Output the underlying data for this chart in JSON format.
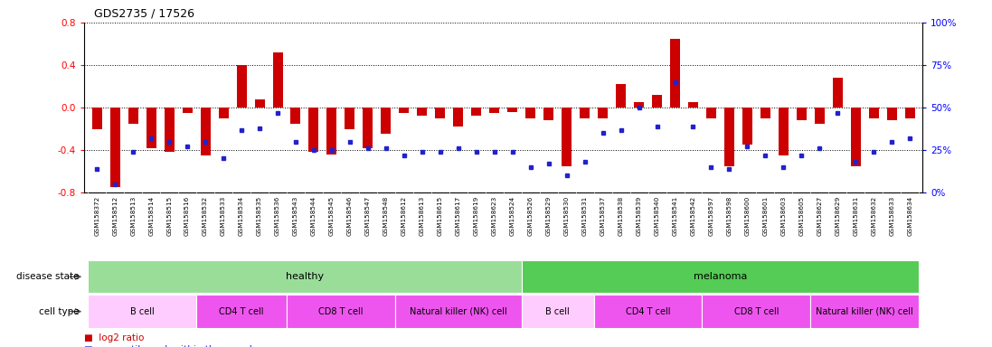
{
  "title": "GDS2735 / 17526",
  "samples": [
    "GSM158372",
    "GSM158512",
    "GSM158513",
    "GSM158514",
    "GSM158515",
    "GSM158516",
    "GSM158532",
    "GSM158533",
    "GSM158534",
    "GSM158535",
    "GSM158536",
    "GSM158543",
    "GSM158544",
    "GSM158545",
    "GSM158546",
    "GSM158547",
    "GSM158548",
    "GSM158612",
    "GSM158613",
    "GSM158615",
    "GSM158617",
    "GSM158619",
    "GSM158623",
    "GSM158524",
    "GSM158526",
    "GSM158529",
    "GSM158530",
    "GSM158531",
    "GSM158537",
    "GSM158538",
    "GSM158539",
    "GSM158540",
    "GSM158541",
    "GSM158542",
    "GSM158597",
    "GSM158598",
    "GSM158600",
    "GSM158601",
    "GSM158603",
    "GSM158605",
    "GSM158627",
    "GSM158629",
    "GSM158631",
    "GSM158632",
    "GSM158633",
    "GSM158634"
  ],
  "log2_ratio": [
    -0.2,
    -0.75,
    -0.15,
    -0.38,
    -0.42,
    -0.05,
    -0.45,
    -0.1,
    0.4,
    0.08,
    0.52,
    -0.15,
    -0.42,
    -0.44,
    -0.2,
    -0.38,
    -0.25,
    -0.05,
    -0.08,
    -0.1,
    -0.18,
    -0.08,
    -0.05,
    -0.04,
    -0.1,
    -0.12,
    -0.55,
    -0.1,
    -0.1,
    0.22,
    0.05,
    0.12,
    0.65,
    0.05,
    -0.1,
    -0.55,
    -0.35,
    -0.1,
    -0.45,
    -0.12,
    -0.15,
    0.28,
    -0.55,
    -0.1,
    -0.12,
    -0.1
  ],
  "percentile": [
    14,
    5,
    24,
    32,
    30,
    27,
    30,
    20,
    37,
    38,
    47,
    30,
    25,
    25,
    30,
    26,
    26,
    22,
    24,
    24,
    26,
    24,
    24,
    24,
    15,
    17,
    10,
    18,
    35,
    37,
    50,
    39,
    65,
    39,
    15,
    14,
    27,
    22,
    15,
    22,
    26,
    47,
    18,
    24,
    30,
    32
  ],
  "disease_state": [
    "healthy",
    "healthy",
    "healthy",
    "healthy",
    "healthy",
    "healthy",
    "healthy",
    "healthy",
    "healthy",
    "healthy",
    "healthy",
    "healthy",
    "healthy",
    "healthy",
    "healthy",
    "healthy",
    "healthy",
    "healthy",
    "healthy",
    "healthy",
    "healthy",
    "healthy",
    "healthy",
    "healthy",
    "melanoma",
    "melanoma",
    "melanoma",
    "melanoma",
    "melanoma",
    "melanoma",
    "melanoma",
    "melanoma",
    "melanoma",
    "melanoma",
    "melanoma",
    "melanoma",
    "melanoma",
    "melanoma",
    "melanoma",
    "melanoma",
    "melanoma",
    "melanoma",
    "melanoma",
    "melanoma",
    "melanoma",
    "melanoma"
  ],
  "cell_type": [
    "B cell",
    "B cell",
    "B cell",
    "B cell",
    "B cell",
    "B cell",
    "CD4 T cell",
    "CD4 T cell",
    "CD4 T cell",
    "CD4 T cell",
    "CD4 T cell",
    "CD8 T cell",
    "CD8 T cell",
    "CD8 T cell",
    "CD8 T cell",
    "CD8 T cell",
    "CD8 T cell",
    "Natural killer (NK) cell",
    "Natural killer (NK) cell",
    "Natural killer (NK) cell",
    "Natural killer (NK) cell",
    "Natural killer (NK) cell",
    "Natural killer (NK) cell",
    "Natural killer (NK) cell",
    "B cell",
    "B cell",
    "B cell",
    "B cell",
    "CD4 T cell",
    "CD4 T cell",
    "CD4 T cell",
    "CD4 T cell",
    "CD4 T cell",
    "CD4 T cell",
    "CD8 T cell",
    "CD8 T cell",
    "CD8 T cell",
    "CD8 T cell",
    "CD8 T cell",
    "CD8 T cell",
    "Natural killer (NK) cell",
    "Natural killer (NK) cell",
    "Natural killer (NK) cell",
    "Natural killer (NK) cell",
    "Natural killer (NK) cell",
    "Natural killer (NK) cell"
  ],
  "ylim": [
    -0.8,
    0.8
  ],
  "yticks_left": [
    -0.8,
    -0.4,
    0.0,
    0.4,
    0.8
  ],
  "right_yticks_pct": [
    0,
    25,
    50,
    75,
    100
  ],
  "bar_color": "#cc0000",
  "dot_color": "#2222cc",
  "healthy_color": "#99dd99",
  "melanoma_color": "#55cc55",
  "background_color": "#ffffff",
  "xtick_bg_color": "#e8e8e8",
  "cell_colors_list": [
    "#ffccff",
    "#ee55ee",
    "#ee55ee",
    "#ee55ee",
    "#ffccff",
    "#ee55ee",
    "#ee55ee",
    "#ee55ee"
  ]
}
